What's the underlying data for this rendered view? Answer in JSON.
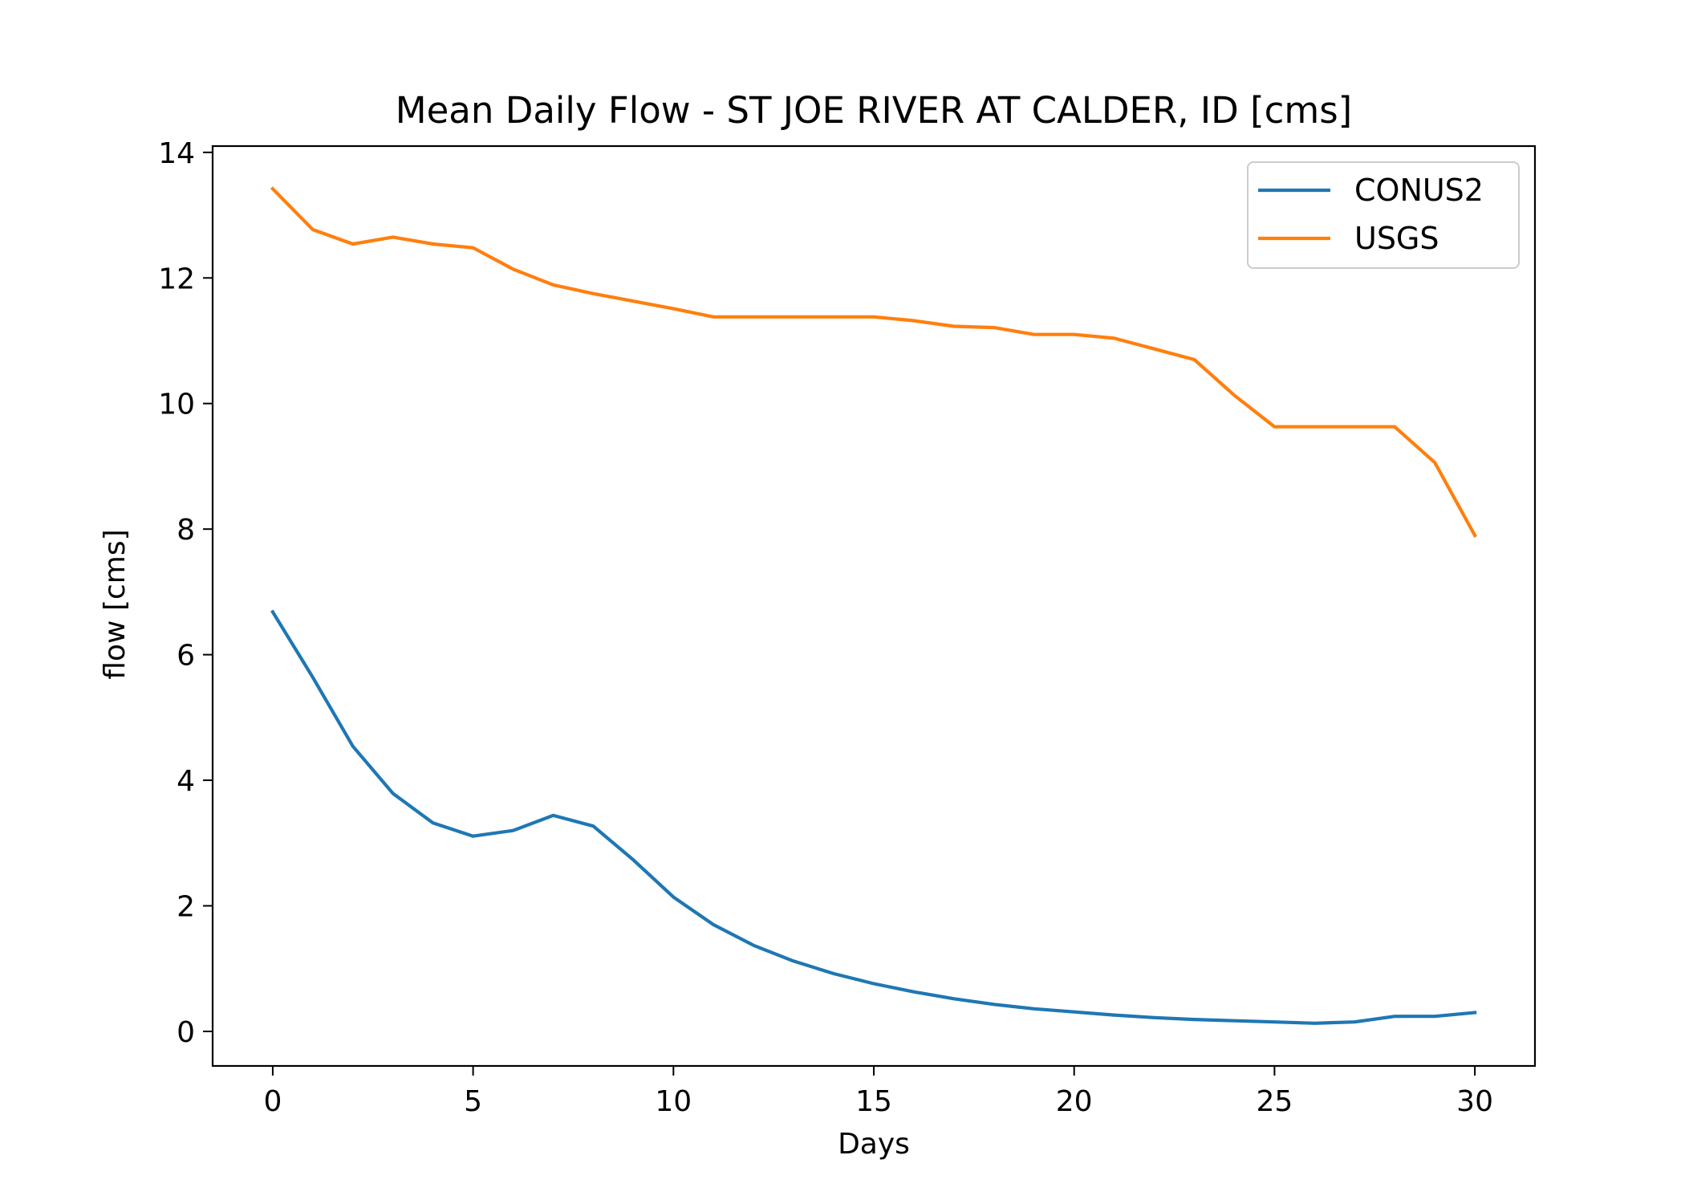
{
  "chart_data": {
    "type": "line",
    "title": "Mean Daily Flow - ST JOE RIVER AT CALDER, ID [cms]",
    "xlabel": "Days",
    "ylabel": "flow [cms]",
    "xlim": [
      -1.5,
      31.5
    ],
    "ylim": [
      -0.55,
      14.1
    ],
    "xticks": [
      0,
      5,
      10,
      15,
      20,
      25,
      30
    ],
    "yticks": [
      0,
      2,
      4,
      6,
      8,
      10,
      12,
      14
    ],
    "grid": false,
    "legend_position": "top-right",
    "x": [
      0,
      1,
      2,
      3,
      4,
      5,
      6,
      7,
      8,
      9,
      10,
      11,
      12,
      13,
      14,
      15,
      16,
      17,
      18,
      19,
      20,
      21,
      22,
      23,
      24,
      25,
      26,
      27,
      28,
      29,
      30
    ],
    "series": [
      {
        "name": "CONUS2",
        "color": "#1f77b4",
        "values": [
          6.68,
          5.64,
          4.54,
          3.79,
          3.32,
          3.11,
          3.2,
          3.44,
          3.27,
          2.73,
          2.14,
          1.7,
          1.37,
          1.12,
          0.92,
          0.76,
          0.63,
          0.52,
          0.43,
          0.36,
          0.31,
          0.26,
          0.22,
          0.19,
          0.17,
          0.15,
          0.13,
          0.15,
          0.24,
          0.24,
          0.3
        ]
      },
      {
        "name": "USGS",
        "color": "#ff7f0e",
        "values": [
          13.42,
          12.77,
          12.54,
          12.65,
          12.54,
          12.48,
          12.14,
          11.89,
          11.75,
          11.63,
          11.51,
          11.38,
          11.38,
          11.38,
          11.38,
          11.38,
          11.32,
          11.23,
          11.21,
          11.1,
          11.1,
          11.04,
          10.87,
          10.7,
          10.13,
          9.63,
          9.63,
          9.63,
          9.63,
          9.06,
          7.9
        ]
      }
    ]
  }
}
